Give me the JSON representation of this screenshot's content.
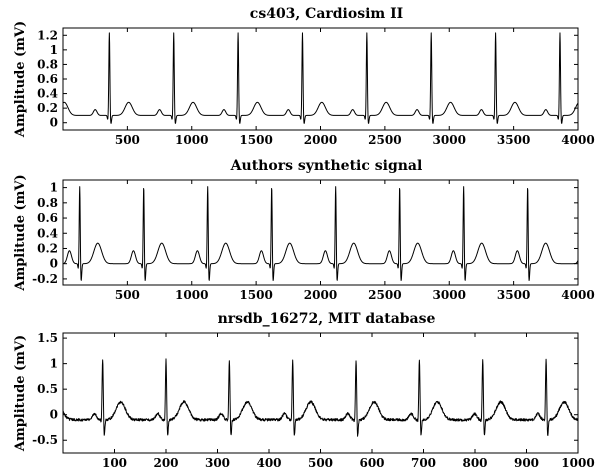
{
  "chart_data": [
    {
      "type": "line",
      "title": "cs403, Cardiosim II",
      "ylabel": "Amplitude (mV)",
      "xlabel": "",
      "xlim": [
        0,
        4000
      ],
      "ylim": [
        -0.1,
        1.3
      ],
      "xticks": [
        500,
        1000,
        1500,
        2000,
        2500,
        3000,
        3500,
        4000
      ],
      "yticks": [
        0,
        0.2,
        0.4,
        0.6,
        0.8,
        1.0,
        1.2
      ],
      "ytick_labels": [
        "0",
        "0.2",
        "0.4",
        "0.6",
        "0.8",
        "1",
        "1.2"
      ],
      "beat": {
        "period": 500,
        "first_r": 360,
        "baseline": 0.1,
        "p": {
          "offset": -110,
          "amp": 0.08,
          "width": 14
        },
        "q": {
          "offset": -12,
          "amp": -0.06,
          "width": 4
        },
        "r": {
          "offset": 0,
          "amp": 1.14,
          "width": 4
        },
        "s": {
          "offset": 12,
          "amp": -0.12,
          "width": 5
        },
        "t": {
          "offset": 150,
          "amp": 0.18,
          "width": 28
        }
      },
      "noise": 0.0
    },
    {
      "type": "line",
      "title": "Authors synthetic signal",
      "ylabel": "Amplitude (mV)",
      "xlabel": "",
      "xlim": [
        0,
        4000
      ],
      "ylim": [
        -0.28,
        1.1
      ],
      "xticks": [
        500,
        1000,
        1500,
        2000,
        2500,
        3000,
        3500,
        4000
      ],
      "yticks": [
        -0.2,
        0,
        0.2,
        0.4,
        0.6,
        0.8,
        1.0
      ],
      "ytick_labels": [
        "-0.2",
        "0",
        "0.2",
        "0.4",
        "0.6",
        "0.8",
        "1"
      ],
      "beat": {
        "period": 497,
        "first_r": 130,
        "baseline": 0.0,
        "p": {
          "offset": -80,
          "amp": 0.17,
          "width": 16
        },
        "q": {
          "offset": -10,
          "amp": -0.08,
          "width": 4
        },
        "r": {
          "offset": 0,
          "amp": 1.05,
          "width": 4
        },
        "s": {
          "offset": 10,
          "amp": -0.25,
          "width": 5
        },
        "t": {
          "offset": 140,
          "amp": 0.27,
          "width": 30
        }
      },
      "noise": 0.0
    },
    {
      "type": "line",
      "title": "nrsdb_16272, MIT database",
      "ylabel": "Amplitude (mV)",
      "xlabel": "",
      "xlim": [
        0,
        1000
      ],
      "ylim": [
        -0.75,
        1.6
      ],
      "xticks": [
        100,
        200,
        300,
        400,
        500,
        600,
        700,
        800,
        900,
        1000
      ],
      "yticks": [
        -0.5,
        0,
        0.5,
        1.0,
        1.5
      ],
      "ytick_labels": [
        "-0.5",
        "0",
        "0.5",
        "1",
        "1.5"
      ],
      "beat": {
        "period": 123,
        "first_r": 77,
        "baseline": -0.1,
        "p": {
          "offset": -16,
          "amp": 0.12,
          "width": 4
        },
        "q": {
          "offset": -2,
          "amp": -0.12,
          "width": 1
        },
        "r": {
          "offset": 0,
          "amp": 1.2,
          "width": 1.2
        },
        "s": {
          "offset": 3,
          "amp": -0.35,
          "width": 1.2
        },
        "t": {
          "offset": 35,
          "amp": 0.35,
          "width": 9
        }
      },
      "noise": 0.025
    }
  ]
}
